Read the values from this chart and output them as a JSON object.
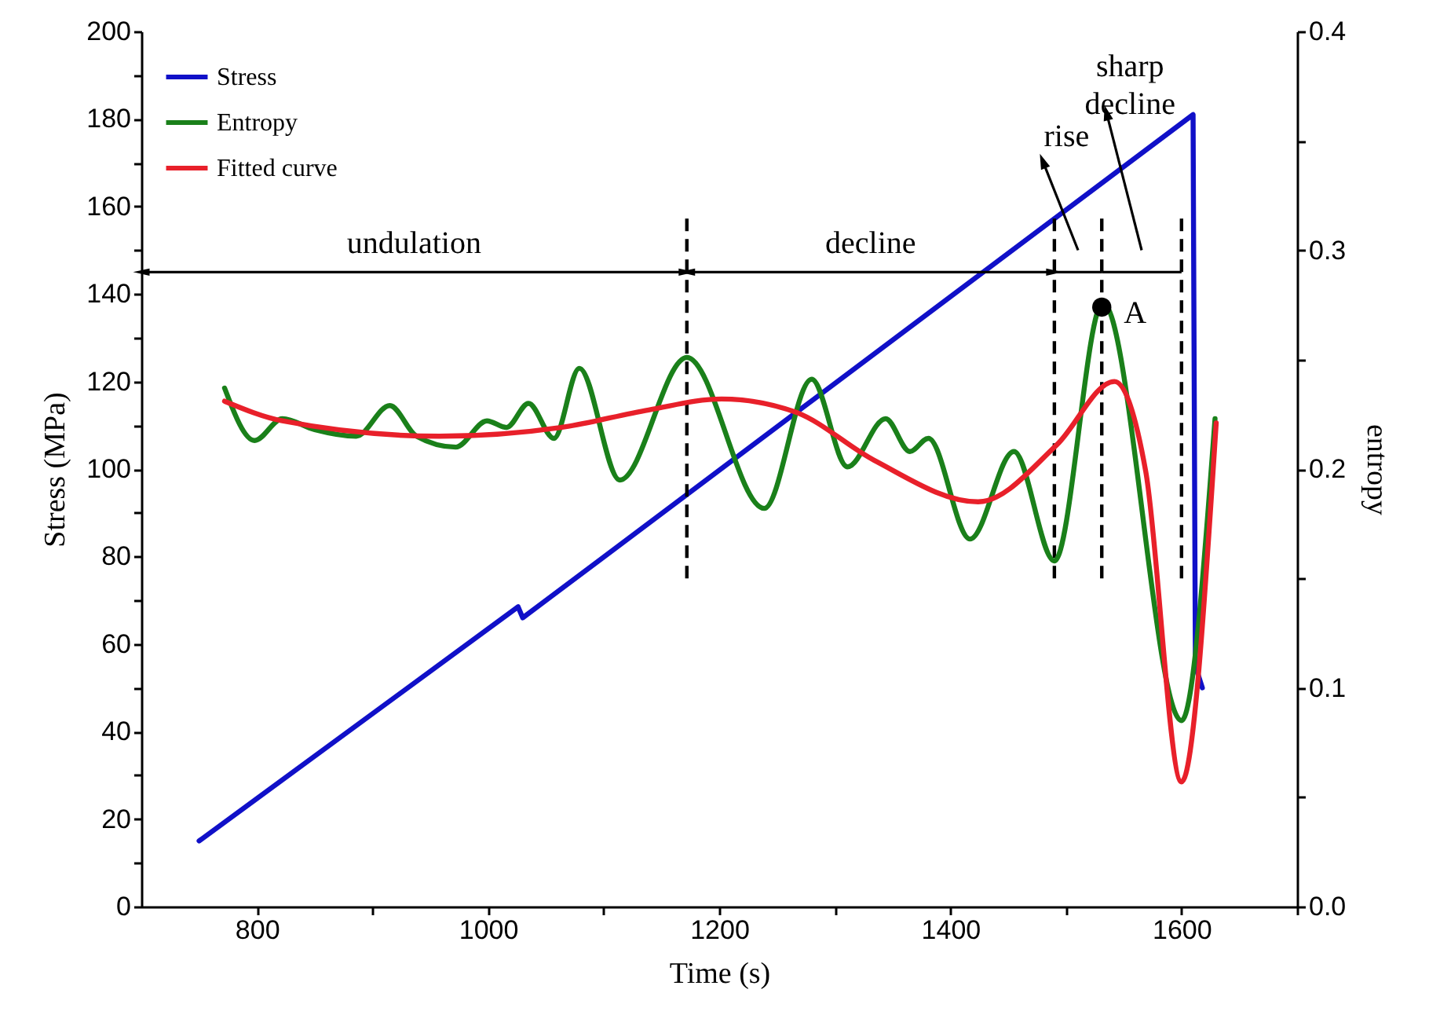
{
  "chart_data": {
    "type": "line",
    "xlabel": "Time (s)",
    "ylabel": "Stress (MPa)",
    "y2label": "entropy",
    "xlim": [
      700,
      1700
    ],
    "xticks": [
      800,
      {
        "value": 900,
        "label": null
      },
      1000,
      {
        "value": 1100,
        "label": null
      },
      1200,
      {
        "value": 1300,
        "label": null
      },
      1400,
      {
        "value": 1500,
        "label": null
      },
      1600,
      {
        "value": 1700,
        "label": null
      }
    ],
    "ylim": [
      0,
      200
    ],
    "yticks": [
      0,
      {
        "value": 10,
        "label": null
      },
      20,
      {
        "value": 30,
        "label": null
      },
      40,
      {
        "value": 50,
        "label": null
      },
      60,
      {
        "value": 70,
        "label": null
      },
      80,
      {
        "value": 90,
        "label": null
      },
      100,
      {
        "value": 110,
        "label": null
      },
      120,
      {
        "value": 130,
        "label": null
      },
      140,
      {
        "value": 150,
        "label": null
      },
      160,
      {
        "value": 170,
        "label": null
      },
      180,
      {
        "value": 190,
        "label": null
      },
      200
    ],
    "y2lim": [
      0,
      0.4
    ],
    "y2ticks": [
      {
        "value": 0,
        "label": "0.0"
      },
      {
        "value": 0.05,
        "label": null
      },
      0.1,
      {
        "value": 0.15,
        "label": null
      },
      0.2,
      {
        "value": 0.25,
        "label": null
      },
      0.3,
      {
        "value": 0.35,
        "label": null
      },
      0.4
    ],
    "legend": "top left",
    "grid": false,
    "series": [
      {
        "name": "Stress",
        "color": "#1010c8",
        "x": [
          750,
          1026,
          1030,
          1610,
          1612,
          1618
        ],
        "values": [
          15,
          68.5,
          66,
          181,
          55,
          50
        ]
      },
      {
        "name": "Entropy",
        "axis": "y2",
        "color": "#1a801a",
        "x": [
          772,
          798,
          822,
          850,
          886,
          915,
          938,
          972,
          999,
          1016,
          1035,
          1057,
          1079,
          1114,
          1172,
          1239,
          1280,
          1311,
          1344,
          1365,
          1381,
          1417,
          1455,
          1490,
          1532,
          1600,
          1629
        ],
        "values": [
          0.237,
          0.213,
          0.223,
          0.218,
          0.215,
          0.229,
          0.215,
          0.21,
          0.222,
          0.219,
          0.23,
          0.214,
          0.246,
          0.195,
          0.251,
          0.182,
          0.241,
          0.201,
          0.223,
          0.208,
          0.214,
          0.168,
          0.208,
          0.158,
          0.276,
          0.085,
          0.223
        ]
      },
      {
        "name": "Fitted curve",
        "axis": "y2",
        "color": "#e8202a",
        "x": [
          772,
          822,
          958,
          1063,
          1139,
          1202,
          1266,
          1334,
          1424,
          1492,
          1542,
          1569,
          1600,
          1630
        ],
        "values": [
          0.231,
          0.222,
          0.215,
          0.219,
          0.227,
          0.232,
          0.226,
          0.204,
          0.185,
          0.211,
          0.24,
          0.199,
          0.057,
          0.221
        ]
      },
      {
        "type": "scatter",
        "axis": "y2",
        "marker": "circle",
        "color": "#000000",
        "x": [
          1531
        ],
        "values": [
          0.274
        ]
      }
    ],
    "ref_lines": [
      {
        "axis": "x",
        "value": 1172,
        "color": "#000000",
        "line_style": "dashed"
      },
      {
        "axis": "x",
        "value": 1490,
        "color": "#000000",
        "line_style": "dashed"
      },
      {
        "axis": "x",
        "value": 1531,
        "color": "#000000",
        "line_style": "dashed"
      },
      {
        "axis": "x",
        "value": 1600,
        "color": "#000000",
        "line_style": "dashed"
      }
    ],
    "annotations": [
      "undulation",
      "decline",
      "rise",
      "sharp decline",
      "A"
    ]
  }
}
